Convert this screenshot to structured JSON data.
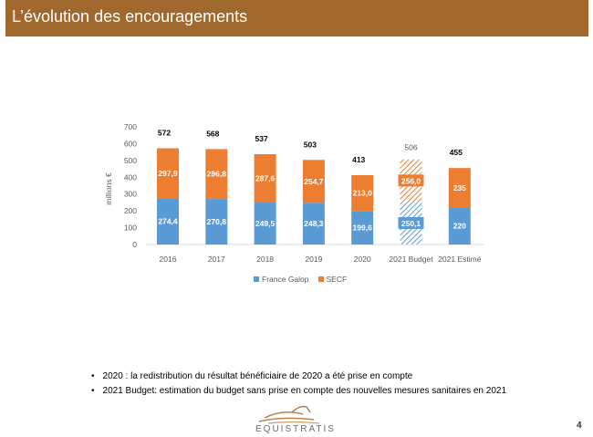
{
  "header": {
    "title": "L’évolution des encouragements"
  },
  "colors": {
    "header_bg": "#a0682c",
    "france_galop": "#5b9bd5",
    "secf": "#ed7d31"
  },
  "chart_data": {
    "type": "bar",
    "stacked": true,
    "title": "",
    "xlabel": "",
    "ylabel": "millions €",
    "ylim": [
      0,
      700
    ],
    "yticks": [
      0,
      100,
      200,
      300,
      400,
      500,
      600,
      700
    ],
    "grid": false,
    "legend_position": "bottom",
    "categories": [
      "2016",
      "2017",
      "2018",
      "2019",
      "2020",
      "2021 Budget",
      "2021 Estimé"
    ],
    "series": [
      {
        "name": "France Galop",
        "values": [
          274.4,
          270.8,
          249.5,
          248.3,
          199.6,
          250.1,
          220
        ],
        "labels": [
          "274,4",
          "270,8",
          "249,5",
          "248,3",
          "199,6",
          "250,1",
          "220"
        ]
      },
      {
        "name": "SECF",
        "values": [
          297.9,
          296.8,
          287.6,
          254.7,
          213.0,
          256.0,
          235
        ],
        "labels": [
          "297,9",
          "296,8",
          "287,6",
          "254,7",
          "213,0",
          "256,0",
          "235"
        ]
      }
    ],
    "totals": [
      "572",
      "568",
      "537",
      "503",
      "413",
      "506",
      "455"
    ],
    "hatched_categories": [
      "2021 Budget"
    ]
  },
  "legend": {
    "items": [
      "France Galop",
      "SECF"
    ]
  },
  "notes": [
    "2020 : la redistribution du résultat bénéficiaire de 2020 a été prise en compte",
    "2021 Budget: estimation du budget sans prise en compte des nouvelles mesures sanitaires en 2021"
  ],
  "footer": {
    "logo_text": "EQUISTRATIS",
    "page_number": "4"
  }
}
